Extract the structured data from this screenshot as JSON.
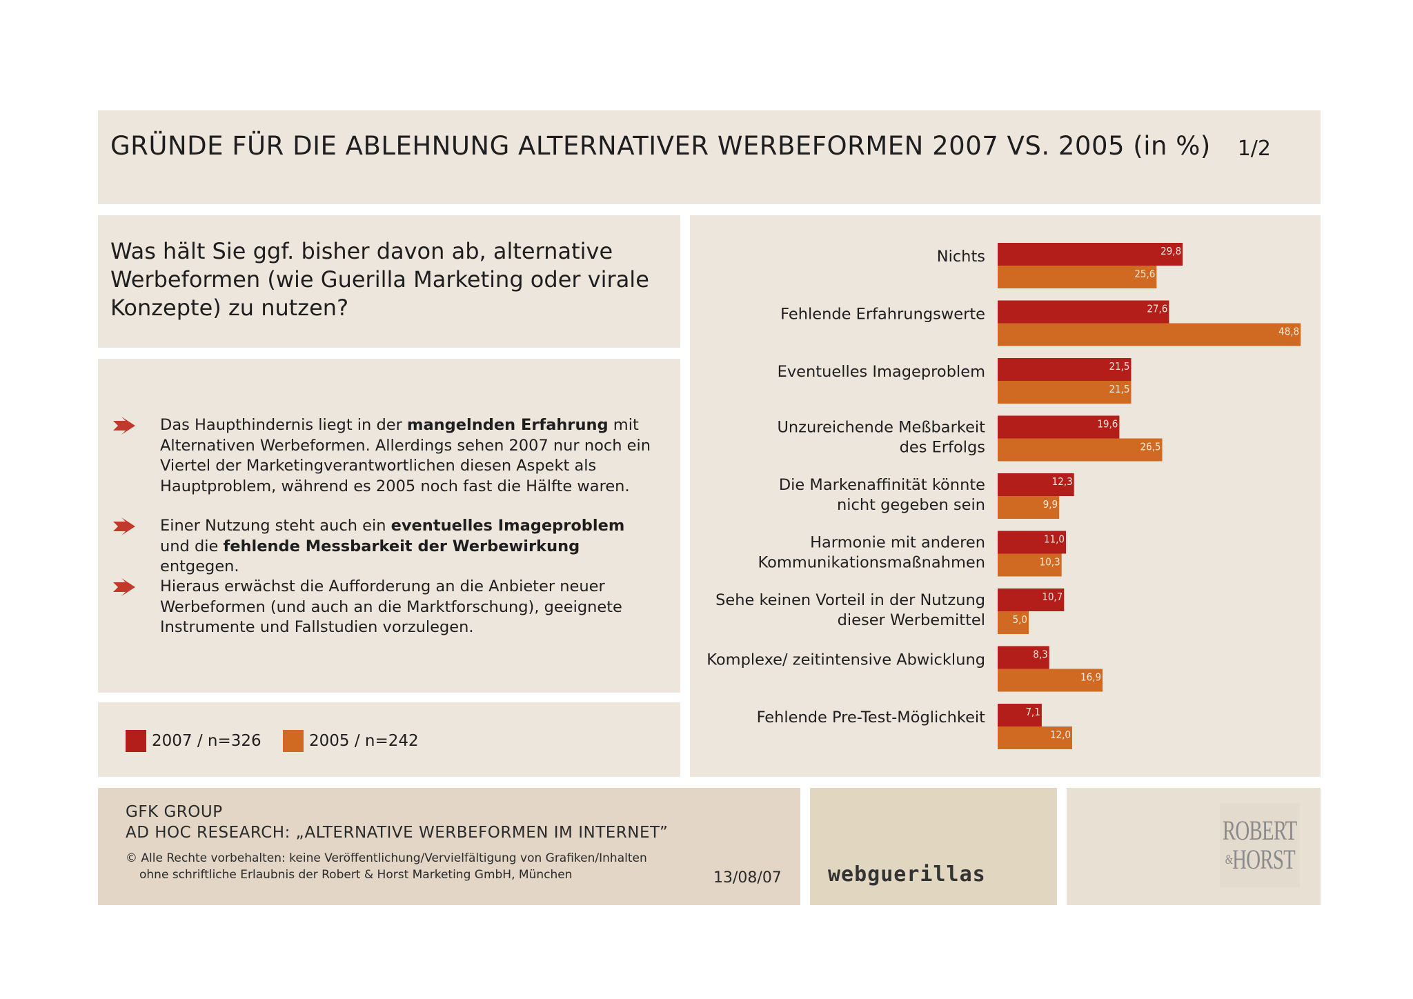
{
  "header": {
    "title": "GRÜNDE FÜR DIE ABLEHNUNG ALTERNATIVER WERBEFORMEN 2007 VS. 2005 (in %)",
    "page": "1/2"
  },
  "question": "Was hält Sie ggf. bisher davon ab, alternative Werbeformen (wie Guerilla Marketing oder virale Konzepte) zu nutzen?",
  "bullets": [
    {
      "parts": [
        {
          "text": "Das Haupthindernis liegt in der ",
          "bold": false
        },
        {
          "text": "mangelnden Erfahrung",
          "bold": true
        },
        {
          "text": " mit Alternativen Werbeformen. Allerdings sehen 2007 nur noch ein Viertel der Marketingverantwortlichen diesen Aspekt als Hauptproblem, während es 2005 noch fast die Hälfte waren.",
          "bold": false
        }
      ]
    },
    {
      "parts": [
        {
          "text": "Einer Nutzung steht auch ein ",
          "bold": false
        },
        {
          "text": "eventuelles Imageproblem",
          "bold": true
        },
        {
          "text": " und die ",
          "bold": false
        },
        {
          "text": "fehlende Messbarkeit der Werbewirkung",
          "bold": true
        },
        {
          "text": " entgegen.",
          "bold": false
        }
      ]
    },
    {
      "parts": [
        {
          "text": "Hieraus erwächst die Aufforderung an die Anbieter neuer Werbeformen (und auch an die Marktforschung), geeignete Instrumente und Fallstudien vorzulegen.",
          "bold": false
        }
      ]
    }
  ],
  "legend": [
    {
      "label": "2007 / n=326",
      "color": "#b31e1a"
    },
    {
      "label": "2005 / n=242",
      "color": "#d06a22"
    }
  ],
  "colors": {
    "panel": "#ede6dc",
    "series_2007": "#b31e1a",
    "series_2005": "#d06a22",
    "bullet_arrow": "#c0392b"
  },
  "chart_data": {
    "type": "bar",
    "orientation": "horizontal",
    "categories": [
      "Nichts",
      "Fehlende Erfahrungswerte",
      "Eventuelles Imageproblem",
      "Unzureichende Meßbarkeit\ndes Erfolgs",
      "Die Markenaffinität könnte\nnicht gegeben sein",
      "Harmonie mit anderen\nKommunikationsmaßnahmen",
      "Sehe keinen Vorteil in der Nutzung\ndieser Werbemittel",
      "Komplexe/ zeitintensive Abwicklung",
      "Fehlende Pre-Test-Möglichkeit"
    ],
    "series": [
      {
        "name": "2007 / n=326",
        "values": [
          29.8,
          27.6,
          21.5,
          19.6,
          12.3,
          11.0,
          10.7,
          8.3,
          7.1
        ],
        "labels": [
          "29,8",
          "27,6",
          "21,5",
          "19,6",
          "12,3",
          "11,0",
          "10,7",
          "8,3",
          "7,1"
        ]
      },
      {
        "name": "2005 / n=242",
        "values": [
          25.6,
          48.8,
          21.5,
          26.5,
          9.9,
          10.3,
          5.0,
          16.9,
          12.0
        ],
        "labels": [
          "25,6",
          "48,8",
          "21,5",
          "26,5",
          "9,9",
          "10,3",
          "5,0",
          "16,9",
          "12,0"
        ]
      }
    ],
    "xlim": [
      0,
      50
    ],
    "grid": false,
    "legend": "bottom-left"
  },
  "footer": {
    "source_line1": "GFK GROUP",
    "source_line2": "AD HOC RESEARCH: „ALTERNATIVE WERBEFORMEN IM INTERNET”",
    "copyright_line1": "© Alle Rechte vorbehalten: keine Veröffentlichung/Vervielfältigung von Grafiken/Inhalten",
    "copyright_line2": "ohne schriftliche Erlaubnis der Robert & Horst Marketing GmbH, München",
    "date": "13/08/07",
    "brand": "webguerillas",
    "logo_line1": "ROBERT",
    "logo_amp": "&",
    "logo_line2": "HORST"
  }
}
